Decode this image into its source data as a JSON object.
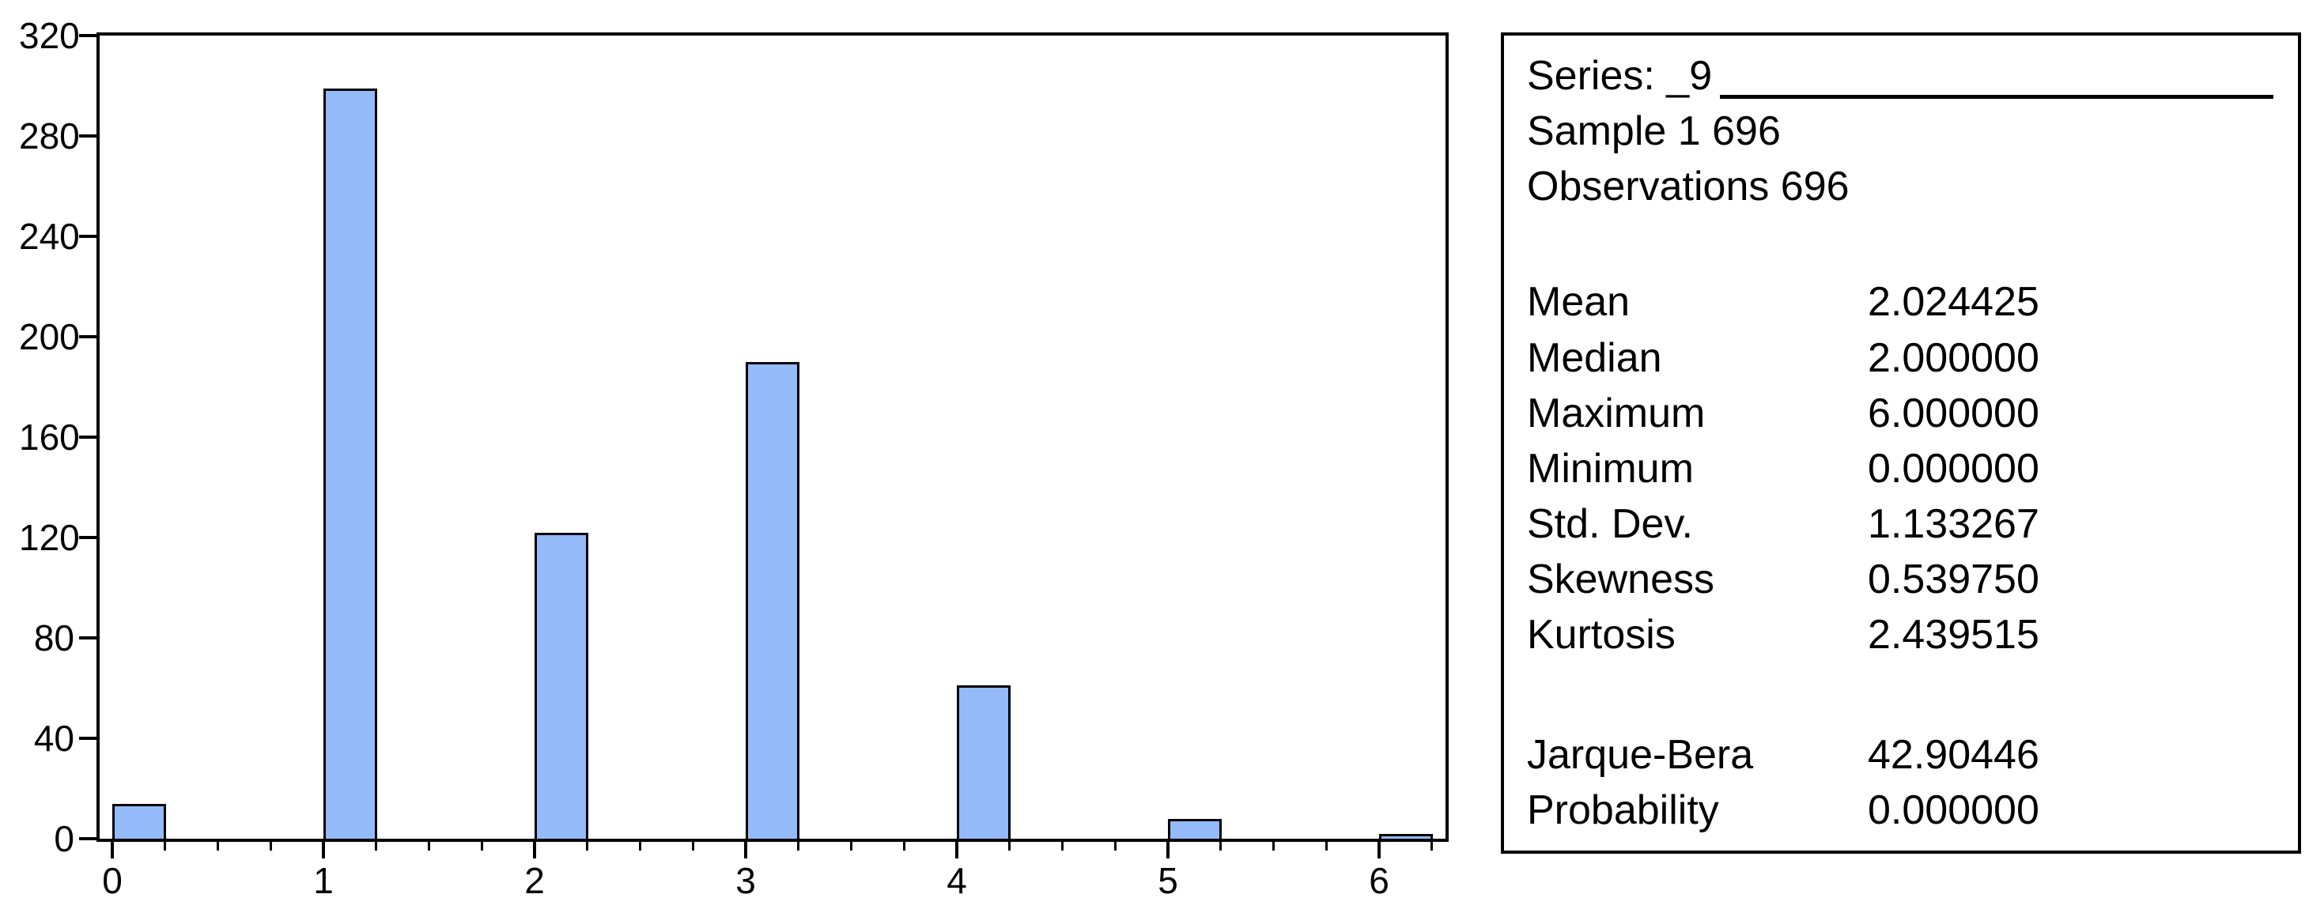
{
  "stats_panel": {
    "title_label": "Series: _9",
    "sample_line": "Sample 1 696",
    "observations_line": "Observations 696",
    "rows": [
      {
        "label": "Mean",
        "value": "2.024425"
      },
      {
        "label": "Median",
        "value": "2.000000"
      },
      {
        "label": "Maximum",
        "value": "6.000000"
      },
      {
        "label": "Minimum",
        "value": "0.000000"
      },
      {
        "label": "Std. Dev.",
        "value": "1.133267"
      },
      {
        "label": "Skewness",
        "value": "0.539750"
      },
      {
        "label": "Kurtosis",
        "value": "2.439515"
      }
    ],
    "test_rows": [
      {
        "label": "Jarque-Bera",
        "value": "42.90446"
      },
      {
        "label": "Probability",
        "value": "0.000000"
      }
    ]
  },
  "chart_data": {
    "type": "bar",
    "title": "",
    "xlabel": "",
    "ylabel": "",
    "categories": [
      0,
      1,
      2,
      3,
      4,
      5,
      6
    ],
    "values": [
      14,
      299,
      122,
      190,
      61,
      8,
      2
    ],
    "bin_width": 0.25,
    "ylim": [
      0,
      320
    ],
    "y_ticks": [
      0,
      40,
      80,
      120,
      160,
      200,
      240,
      280,
      320
    ],
    "x_minor_step": 0.25,
    "x_minor_max": 6.25,
    "grid": false,
    "legend": "none",
    "bar_fill": "#94bafa",
    "bar_border": "#000000"
  }
}
